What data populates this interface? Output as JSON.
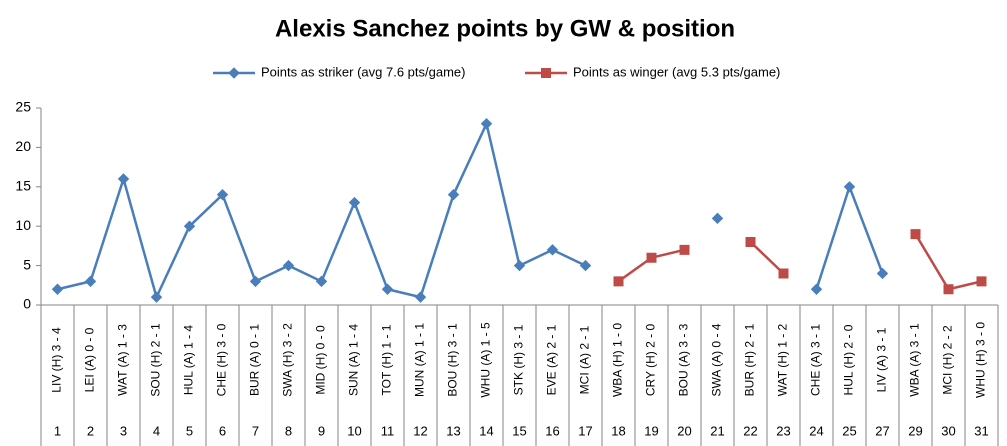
{
  "chart_data": {
    "type": "line",
    "title": "Alexis Sanchez points by GW & position",
    "categories": [
      "LIV (H) 3 - 4",
      "LEI (A) 0 - 0",
      "WAT (A) 1 - 3",
      "SOU (H) 2 - 1",
      "HUL (A) 1 - 4",
      "CHE (H) 3 - 0",
      "BUR (A) 0 - 1",
      "SWA (H) 3 - 2",
      "MID (H) 0 - 0",
      "SUN (A) 1 - 4",
      "TOT (H) 1 - 1",
      "MUN (A) 1 - 1",
      "BOU (H) 3 - 1",
      "WHU (A) 1 - 5",
      "STK (H) 3 - 1",
      "EVE (A) 2 - 1",
      "MCI (A) 2 - 1",
      "WBA (H) 1 - 0",
      "CRY (H) 2 - 0",
      "BOU (A) 3 - 3",
      "SWA (A) 0 - 4",
      "BUR (H) 2 - 1",
      "WAT (H) 1 - 2",
      "CHE (A) 3 - 1",
      "HUL (H) 2 - 0",
      "LIV (A) 3 - 1",
      "WBA (A) 3 - 1",
      "MCI (H) 2 - 2",
      "WHU (H) 3 - 0"
    ],
    "gameweeks": [
      1,
      2,
      3,
      4,
      5,
      6,
      7,
      8,
      9,
      10,
      11,
      12,
      13,
      14,
      15,
      16,
      17,
      18,
      19,
      20,
      21,
      22,
      23,
      24,
      25,
      27,
      29,
      30,
      31
    ],
    "series": [
      {
        "name": "Points as striker (avg 7.6 pts/game)",
        "color": "#4a7ebb",
        "marker": "diamond",
        "values": [
          2,
          3,
          16,
          1,
          10,
          14,
          3,
          5,
          3,
          13,
          2,
          1,
          14,
          23,
          5,
          7,
          5,
          null,
          null,
          null,
          11,
          null,
          null,
          2,
          15,
          4,
          null,
          null,
          null
        ]
      },
      {
        "name": "Points as winger (avg 5.3 pts/game)",
        "color": "#be4b48",
        "marker": "square",
        "values": [
          null,
          null,
          null,
          null,
          null,
          null,
          null,
          null,
          null,
          null,
          null,
          null,
          null,
          null,
          null,
          null,
          null,
          3,
          6,
          7,
          null,
          8,
          4,
          null,
          null,
          null,
          9,
          2,
          3
        ]
      }
    ],
    "ylim": [
      0,
      25
    ],
    "yticks": [
      0,
      5,
      10,
      15,
      20,
      25
    ],
    "grid": false
  }
}
